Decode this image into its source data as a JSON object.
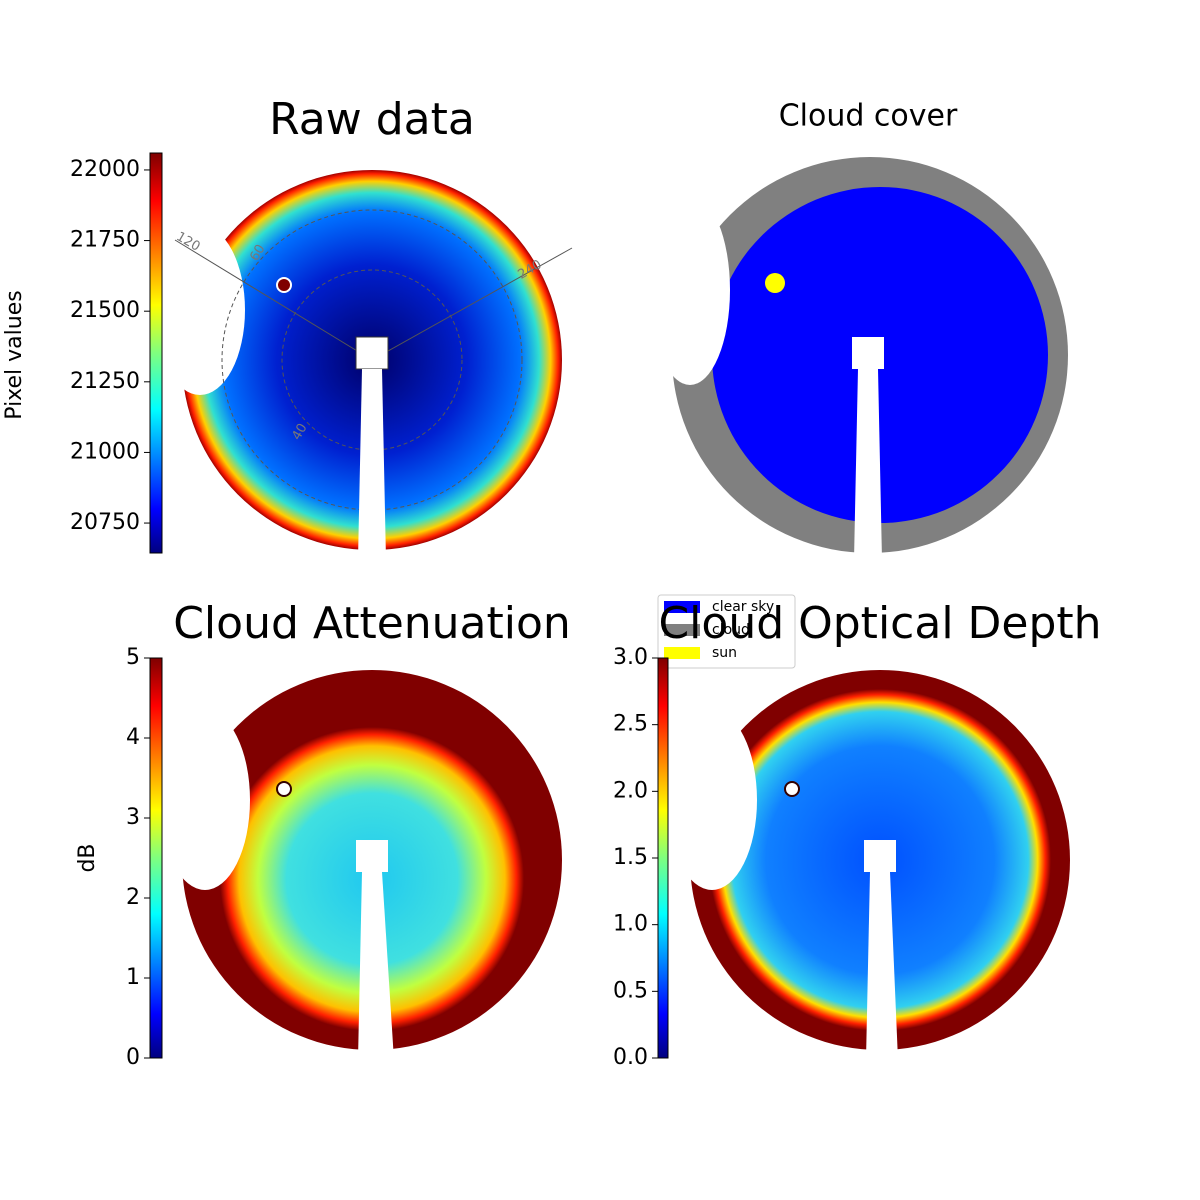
{
  "chart_data": [
    {
      "type": "image",
      "title": "Raw data",
      "colorbar_label": "Pixel values",
      "clim": [
        20644,
        22060
      ],
      "cticks": [
        20750,
        21000,
        21250,
        21500,
        21750,
        22000
      ],
      "annotations": [
        "120",
        "60",
        "240",
        "40"
      ]
    },
    {
      "type": "image",
      "title": "Cloud cover",
      "legend": [
        {
          "name": "clear sky",
          "color": "#0000ff"
        },
        {
          "name": "cloud",
          "color": "#808080"
        },
        {
          "name": "sun",
          "color": "#ffff00"
        }
      ]
    },
    {
      "type": "image",
      "title": "Cloud Attenuation",
      "colorbar_label": "dB",
      "clim": [
        0,
        5
      ],
      "cticks": [
        0,
        1,
        2,
        3,
        4,
        5
      ]
    },
    {
      "type": "image",
      "title": "Cloud Optical Depth",
      "clim": [
        0,
        3
      ],
      "cticks": [
        {
          "value": 0,
          "label": "0.0"
        },
        0.5,
        {
          "value": 1,
          "label": "1.0"
        },
        1.5,
        {
          "value": 2,
          "label": "2.0"
        },
        2.5,
        {
          "value": 3,
          "label": "3.0"
        }
      ]
    }
  ]
}
